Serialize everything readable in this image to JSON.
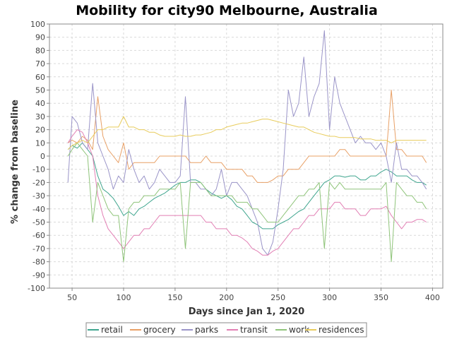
{
  "chart_data": {
    "type": "line",
    "title": "Mobility for city90 Melbourne, Australia",
    "xlabel": "Days since Jan 1, 2020",
    "ylabel": "% change from baseline",
    "xlim": [
      28,
      410
    ],
    "ylim": [
      -100,
      100
    ],
    "x_ticks": [
      50,
      100,
      150,
      200,
      250,
      300,
      350,
      400
    ],
    "y_ticks": [
      -100,
      -90,
      -80,
      -70,
      -60,
      -50,
      -40,
      -30,
      -20,
      -10,
      0,
      10,
      20,
      30,
      40,
      50,
      60,
      70,
      80,
      90,
      100
    ],
    "grid": true,
    "legend_position": "bottom",
    "x": [
      46,
      50,
      55,
      60,
      65,
      70,
      75,
      80,
      85,
      90,
      95,
      100,
      105,
      110,
      115,
      120,
      125,
      130,
      135,
      140,
      145,
      150,
      155,
      160,
      165,
      170,
      175,
      180,
      185,
      190,
      195,
      200,
      205,
      210,
      215,
      220,
      225,
      230,
      235,
      240,
      245,
      250,
      255,
      260,
      265,
      270,
      275,
      280,
      285,
      290,
      295,
      300,
      305,
      310,
      315,
      320,
      325,
      330,
      335,
      340,
      345,
      350,
      355,
      360,
      365,
      370,
      375,
      380,
      385,
      390,
      394
    ],
    "series": [
      {
        "name": "retail",
        "color": "#3fa58e",
        "values": [
          5,
          8,
          6,
          10,
          5,
          0,
          -15,
          -25,
          -28,
          -32,
          -38,
          -45,
          -42,
          -45,
          -40,
          -38,
          -35,
          -32,
          -30,
          -28,
          -25,
          -22,
          -20,
          -20,
          -18,
          -18,
          -20,
          -25,
          -28,
          -30,
          -32,
          -30,
          -33,
          -38,
          -40,
          -45,
          -50,
          -52,
          -55,
          -55,
          -55,
          -52,
          -50,
          -48,
          -45,
          -42,
          -40,
          -35,
          -30,
          -25,
          -20,
          -18,
          -15,
          -15,
          -16,
          -15,
          -15,
          -18,
          -18,
          -15,
          -15,
          -12,
          -10,
          -12,
          -15,
          -15,
          -15,
          -18,
          -20,
          -20,
          -22
        ]
      },
      {
        "name": "grocery",
        "color": "#e8a066",
        "values": [
          10,
          12,
          10,
          15,
          12,
          5,
          45,
          15,
          5,
          0,
          -5,
          10,
          -10,
          -5,
          -5,
          -5,
          -5,
          -5,
          0,
          0,
          0,
          0,
          0,
          0,
          -5,
          -5,
          -5,
          0,
          -5,
          -5,
          -5,
          -10,
          -10,
          -10,
          -10,
          -15,
          -15,
          -20,
          -20,
          -20,
          -18,
          -15,
          -15,
          -10,
          -10,
          -10,
          -5,
          0,
          0,
          0,
          0,
          0,
          0,
          5,
          5,
          0,
          0,
          0,
          0,
          0,
          0,
          0,
          0,
          50,
          5,
          5,
          0,
          0,
          0,
          0,
          -5
        ]
      },
      {
        "name": "parks",
        "color": "#9a94c8",
        "values": [
          -20,
          30,
          25,
          10,
          5,
          55,
          10,
          0,
          -10,
          -25,
          -15,
          -20,
          5,
          -10,
          -20,
          -15,
          -25,
          -20,
          -10,
          -15,
          -20,
          -20,
          -15,
          45,
          -20,
          -20,
          -25,
          -25,
          -30,
          -25,
          -10,
          -30,
          -20,
          -20,
          -25,
          -30,
          -40,
          -50,
          -70,
          -75,
          -65,
          -40,
          -10,
          50,
          30,
          40,
          75,
          30,
          45,
          55,
          95,
          20,
          60,
          40,
          30,
          20,
          10,
          15,
          10,
          10,
          5,
          10,
          0,
          -20,
          10,
          -10,
          -10,
          -15,
          -15,
          -20,
          -25
        ]
      },
      {
        "name": "transit",
        "color": "#e27fb4",
        "values": [
          10,
          15,
          20,
          18,
          10,
          0,
          -30,
          -45,
          -55,
          -60,
          -65,
          -70,
          -65,
          -60,
          -60,
          -55,
          -55,
          -50,
          -45,
          -45,
          -45,
          -45,
          -45,
          -45,
          -45,
          -45,
          -45,
          -50,
          -50,
          -55,
          -55,
          -55,
          -60,
          -60,
          -62,
          -65,
          -70,
          -72,
          -75,
          -75,
          -72,
          -70,
          -65,
          -60,
          -55,
          -55,
          -50,
          -45,
          -45,
          -40,
          -40,
          -40,
          -35,
          -35,
          -40,
          -40,
          -40,
          -45,
          -45,
          -40,
          -40,
          -40,
          -38,
          -45,
          -50,
          -55,
          -50,
          -50,
          -48,
          -48,
          -50
        ]
      },
      {
        "name": "work",
        "color": "#8fc47a",
        "values": [
          0,
          5,
          10,
          5,
          0,
          -50,
          -20,
          -30,
          -40,
          -45,
          -45,
          -80,
          -40,
          -35,
          -35,
          -30,
          -30,
          -30,
          -25,
          -25,
          -25,
          -25,
          -20,
          -70,
          -20,
          -20,
          -20,
          -25,
          -30,
          -30,
          -30,
          -30,
          -30,
          -35,
          -35,
          -35,
          -40,
          -40,
          -45,
          -50,
          -50,
          -50,
          -45,
          -40,
          -35,
          -30,
          -30,
          -25,
          -25,
          -20,
          -70,
          -20,
          -25,
          -20,
          -25,
          -25,
          -25,
          -25,
          -25,
          -25,
          -25,
          -25,
          -20,
          -80,
          -20,
          -25,
          -30,
          -30,
          -35,
          -35,
          -40
        ]
      },
      {
        "name": "residences",
        "color": "#e8cc5c",
        "values": [
          5,
          8,
          10,
          12,
          10,
          15,
          20,
          20,
          22,
          22,
          22,
          30,
          22,
          22,
          20,
          20,
          18,
          18,
          16,
          15,
          15,
          15,
          16,
          15,
          15,
          16,
          16,
          17,
          18,
          20,
          20,
          22,
          23,
          24,
          25,
          25,
          26,
          27,
          28,
          28,
          27,
          26,
          25,
          24,
          23,
          22,
          22,
          20,
          18,
          17,
          16,
          15,
          15,
          14,
          14,
          14,
          14,
          13,
          13,
          13,
          12,
          12,
          12,
          10,
          12,
          12,
          12,
          12,
          12,
          12,
          12
        ]
      }
    ]
  }
}
